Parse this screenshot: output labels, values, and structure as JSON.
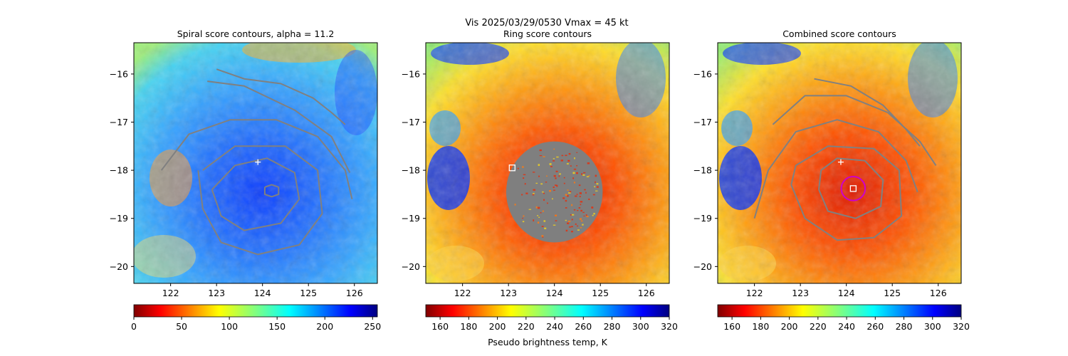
{
  "figure_title": "Vis  2025/03/29/0530    Vmax = 45 kt",
  "colorbar_label": "Pseudo brightness temp, K",
  "chart_data": [
    {
      "type": "heatmap",
      "title": "Spiral score contours, alpha = 11.2",
      "xlim": [
        121.2,
        126.5
      ],
      "ylim": [
        -20.35,
        -15.35
      ],
      "xticks": [
        122,
        123,
        124,
        125,
        126
      ],
      "yticks": [
        -16,
        -17,
        -18,
        -19,
        -20
      ],
      "colorscale": "jet_r",
      "colorbar_ticks": [
        0,
        50,
        100,
        150,
        200,
        250
      ],
      "colorbar_range": [
        0,
        255
      ],
      "contour_color": "#808080",
      "contours": [
        [
          [
            123.0,
            -15.9
          ],
          [
            123.6,
            -16.1
          ],
          [
            124.4,
            -16.2
          ],
          [
            125.1,
            -16.5
          ],
          [
            125.5,
            -16.8
          ],
          [
            125.8,
            -17.05
          ]
        ],
        [
          [
            122.8,
            -16.15
          ],
          [
            123.6,
            -16.25
          ],
          [
            124.7,
            -16.75
          ],
          [
            125.5,
            -17.3
          ],
          [
            125.9,
            -18.05
          ]
        ],
        [
          [
            121.8,
            -18.0
          ],
          [
            122.4,
            -17.25
          ],
          [
            123.3,
            -16.95
          ],
          [
            124.3,
            -16.95
          ],
          [
            125.2,
            -17.3
          ],
          [
            125.8,
            -18.0
          ],
          [
            125.95,
            -18.6
          ]
        ],
        [
          [
            122.6,
            -18.0
          ],
          [
            122.7,
            -18.8
          ],
          [
            123.1,
            -19.5
          ],
          [
            123.9,
            -19.75
          ],
          [
            124.8,
            -19.55
          ],
          [
            125.3,
            -18.9
          ],
          [
            125.2,
            -18.0
          ],
          [
            124.5,
            -17.5
          ],
          [
            123.4,
            -17.5
          ],
          [
            122.7,
            -18.0
          ]
        ],
        [
          [
            122.9,
            -18.4
          ],
          [
            123.1,
            -18.95
          ],
          [
            123.6,
            -19.25
          ],
          [
            124.4,
            -19.1
          ],
          [
            124.8,
            -18.6
          ],
          [
            124.7,
            -18.05
          ],
          [
            124.1,
            -17.75
          ],
          [
            123.4,
            -17.9
          ],
          [
            122.9,
            -18.4
          ]
        ],
        [
          [
            124.05,
            -18.35
          ],
          [
            124.2,
            -18.3
          ],
          [
            124.35,
            -18.35
          ],
          [
            124.35,
            -18.5
          ],
          [
            124.2,
            -18.55
          ],
          [
            124.05,
            -18.5
          ],
          [
            124.05,
            -18.35
          ]
        ]
      ],
      "markers": [
        {
          "type": "plus",
          "lon": 123.9,
          "lat": -17.83,
          "color": "#ffffff"
        }
      ]
    },
    {
      "type": "heatmap",
      "title": "Ring score contours",
      "xlim": [
        121.2,
        126.5
      ],
      "ylim": [
        -20.35,
        -15.35
      ],
      "xticks": [
        122,
        123,
        124,
        125,
        126
      ],
      "yticks": [
        -16,
        -17,
        -18,
        -19,
        -20
      ],
      "colorscale": "jet_r",
      "colorbar_ticks": [
        160,
        180,
        200,
        220,
        240,
        260,
        280,
        300,
        320
      ],
      "colorbar_range": [
        150,
        320
      ],
      "ring_region": {
        "center": [
          124.0,
          -18.45
        ],
        "radius_lon": 1.05,
        "radius_lat": 1.05
      },
      "markers": [
        {
          "type": "square",
          "lon": 123.08,
          "lat": -17.95,
          "color": "#ffffff"
        }
      ]
    },
    {
      "type": "heatmap",
      "title": "Combined score contours",
      "xlim": [
        121.2,
        126.5
      ],
      "ylim": [
        -20.35,
        -15.35
      ],
      "xticks": [
        122,
        123,
        124,
        125,
        126
      ],
      "yticks": [
        -16,
        -17,
        -18,
        -19,
        -20
      ],
      "colorscale": "jet_r",
      "colorbar_ticks": [
        160,
        180,
        200,
        220,
        240,
        260,
        280,
        300,
        320
      ],
      "colorbar_range": [
        150,
        320
      ],
      "contour_color": "#808080",
      "contours": [
        [
          [
            123.3,
            -16.1
          ],
          [
            124.1,
            -16.25
          ],
          [
            124.8,
            -16.65
          ],
          [
            125.3,
            -17.15
          ],
          [
            125.6,
            -17.5
          ]
        ],
        [
          [
            122.4,
            -17.05
          ],
          [
            123.1,
            -16.45
          ],
          [
            124.0,
            -16.45
          ],
          [
            124.9,
            -16.8
          ],
          [
            125.6,
            -17.4
          ],
          [
            125.95,
            -17.9
          ]
        ],
        [
          [
            122.0,
            -19.0
          ],
          [
            122.3,
            -18.0
          ],
          [
            122.9,
            -17.2
          ],
          [
            123.8,
            -16.95
          ],
          [
            124.7,
            -17.2
          ],
          [
            125.3,
            -17.8
          ],
          [
            125.55,
            -18.45
          ]
        ],
        [
          [
            122.8,
            -18.3
          ],
          [
            123.1,
            -19.0
          ],
          [
            123.8,
            -19.45
          ],
          [
            124.6,
            -19.4
          ],
          [
            125.2,
            -18.95
          ],
          [
            125.15,
            -18.0
          ],
          [
            124.6,
            -17.55
          ],
          [
            123.6,
            -17.5
          ],
          [
            122.9,
            -17.9
          ],
          [
            122.8,
            -18.3
          ]
        ],
        [
          [
            123.4,
            -18.4
          ],
          [
            123.6,
            -18.85
          ],
          [
            124.2,
            -19.0
          ],
          [
            124.75,
            -18.75
          ],
          [
            124.8,
            -18.2
          ],
          [
            124.4,
            -17.8
          ],
          [
            123.8,
            -17.75
          ],
          [
            123.45,
            -18.0
          ],
          [
            123.4,
            -18.4
          ]
        ]
      ],
      "markers": [
        {
          "type": "plus",
          "lon": 123.88,
          "lat": -17.83,
          "color": "#ffffff"
        },
        {
          "type": "square",
          "lon": 124.15,
          "lat": -18.38,
          "color": "#ffffff"
        },
        {
          "type": "circle",
          "lon": 124.15,
          "lat": -18.38,
          "radius_lon": 0.26,
          "color": "#cc00cc"
        }
      ]
    }
  ]
}
